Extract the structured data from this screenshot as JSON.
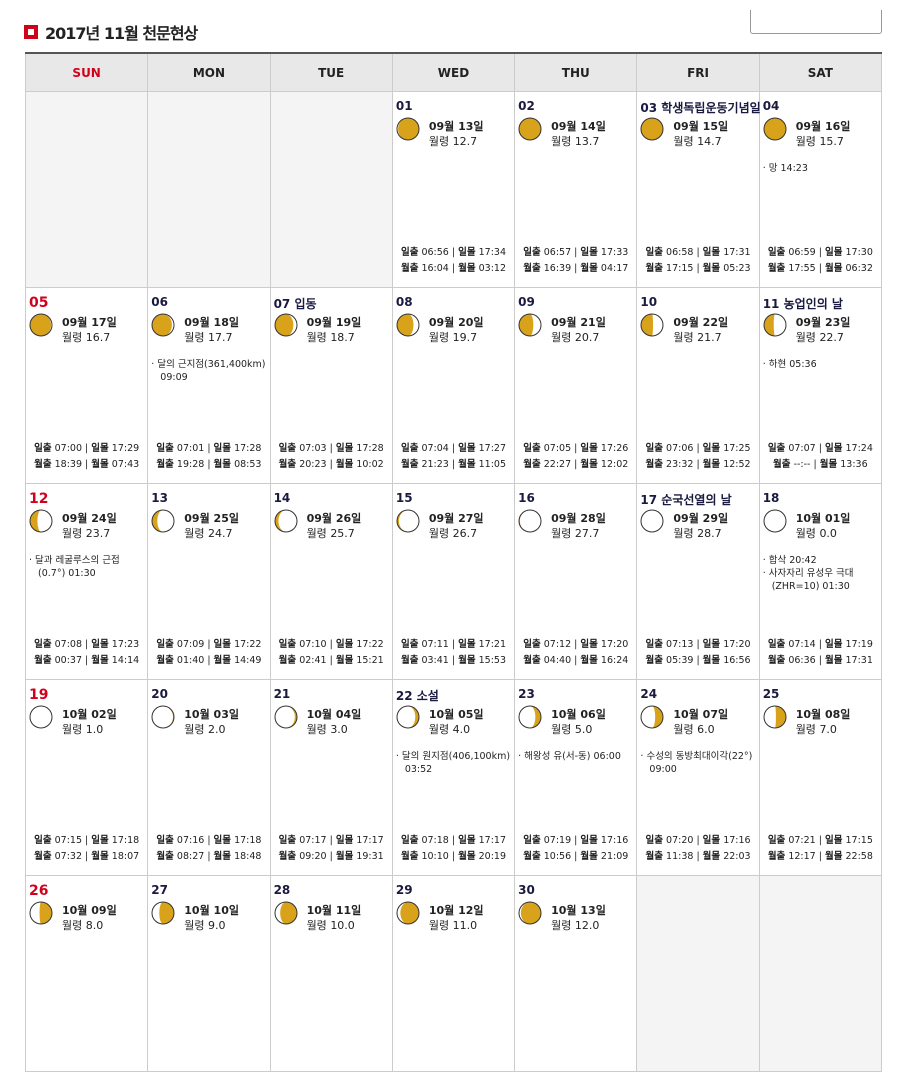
{
  "title": "2017년 11월 천문현상",
  "colors": {
    "accent": "#d0021b",
    "moon_lit": "#d9a21b"
  },
  "weekdays": [
    "SUN",
    "MON",
    "TUE",
    "WED",
    "THU",
    "FRI",
    "SAT"
  ],
  "labels": {
    "sunrise": "일출",
    "sunset": "일몰",
    "moonrise": "월출",
    "moonset": "월몰",
    "age": "월령"
  },
  "weeks": [
    {
      "days": [
        null,
        null,
        null,
        {
          "day": "01",
          "holiday": "",
          "lunar": "09월 13일",
          "age": "12.7",
          "events": [],
          "sr": "06:56",
          "ss": "17:34",
          "mr": "16:04",
          "ms": "03:12"
        },
        {
          "day": "02",
          "holiday": "",
          "lunar": "09월 14일",
          "age": "13.7",
          "events": [],
          "sr": "06:57",
          "ss": "17:33",
          "mr": "16:39",
          "ms": "04:17"
        },
        {
          "day": "03",
          "holiday": "학생독립운동기념일",
          "lunar": "09월 15일",
          "age": "14.7",
          "events": [],
          "sr": "06:58",
          "ss": "17:31",
          "mr": "17:15",
          "ms": "05:23"
        },
        {
          "day": "04",
          "holiday": "",
          "lunar": "09월 16일",
          "age": "15.7",
          "events": [
            "망 14:23"
          ],
          "sr": "06:59",
          "ss": "17:30",
          "mr": "17:55",
          "ms": "06:32"
        }
      ]
    },
    {
      "days": [
        {
          "day": "05",
          "holiday": "",
          "lunar": "09월 17일",
          "age": "16.7",
          "events": [],
          "sr": "07:00",
          "ss": "17:29",
          "mr": "18:39",
          "ms": "07:43"
        },
        {
          "day": "06",
          "holiday": "",
          "lunar": "09월 18일",
          "age": "17.7",
          "events": [
            "달의 근지점(361,400km) 09:09"
          ],
          "sr": "07:01",
          "ss": "17:28",
          "mr": "19:28",
          "ms": "08:53"
        },
        {
          "day": "07",
          "holiday": "입동",
          "lunar": "09월 19일",
          "age": "18.7",
          "events": [],
          "sr": "07:03",
          "ss": "17:28",
          "mr": "20:23",
          "ms": "10:02"
        },
        {
          "day": "08",
          "holiday": "",
          "lunar": "09월 20일",
          "age": "19.7",
          "events": [],
          "sr": "07:04",
          "ss": "17:27",
          "mr": "21:23",
          "ms": "11:05"
        },
        {
          "day": "09",
          "holiday": "",
          "lunar": "09월 21일",
          "age": "20.7",
          "events": [],
          "sr": "07:05",
          "ss": "17:26",
          "mr": "22:27",
          "ms": "12:02"
        },
        {
          "day": "10",
          "holiday": "",
          "lunar": "09월 22일",
          "age": "21.7",
          "events": [],
          "sr": "07:06",
          "ss": "17:25",
          "mr": "23:32",
          "ms": "12:52"
        },
        {
          "day": "11",
          "holiday": "농업인의 날",
          "lunar": "09월 23일",
          "age": "22.7",
          "events": [
            "하현 05:36"
          ],
          "sr": "07:07",
          "ss": "17:24",
          "mr": "--:--",
          "ms": "13:36"
        }
      ]
    },
    {
      "days": [
        {
          "day": "12",
          "holiday": "",
          "lunar": "09월 24일",
          "age": "23.7",
          "events": [
            "달과 레굴루스의 근접(0.7°) 01:30"
          ],
          "sr": "07:08",
          "ss": "17:23",
          "mr": "00:37",
          "ms": "14:14"
        },
        {
          "day": "13",
          "holiday": "",
          "lunar": "09월 25일",
          "age": "24.7",
          "events": [],
          "sr": "07:09",
          "ss": "17:22",
          "mr": "01:40",
          "ms": "14:49"
        },
        {
          "day": "14",
          "holiday": "",
          "lunar": "09월 26일",
          "age": "25.7",
          "events": [],
          "sr": "07:10",
          "ss": "17:22",
          "mr": "02:41",
          "ms": "15:21"
        },
        {
          "day": "15",
          "holiday": "",
          "lunar": "09월 27일",
          "age": "26.7",
          "events": [],
          "sr": "07:11",
          "ss": "17:21",
          "mr": "03:41",
          "ms": "15:53"
        },
        {
          "day": "16",
          "holiday": "",
          "lunar": "09월 28일",
          "age": "27.7",
          "events": [],
          "sr": "07:12",
          "ss": "17:20",
          "mr": "04:40",
          "ms": "16:24"
        },
        {
          "day": "17",
          "holiday": "순국선열의 날",
          "lunar": "09월 29일",
          "age": "28.7",
          "events": [],
          "sr": "07:13",
          "ss": "17:20",
          "mr": "05:39",
          "ms": "16:56"
        },
        {
          "day": "18",
          "holiday": "",
          "lunar": "10월 01일",
          "age": "0.0",
          "events": [
            "합삭 20:42",
            "사자자리 유성우 극대 (ZHR=10) 01:30"
          ],
          "sr": "07:14",
          "ss": "17:19",
          "mr": "06:36",
          "ms": "17:31"
        }
      ]
    },
    {
      "days": [
        {
          "day": "19",
          "holiday": "",
          "lunar": "10월 02일",
          "age": "1.0",
          "events": [],
          "sr": "07:15",
          "ss": "17:18",
          "mr": "07:32",
          "ms": "18:07"
        },
        {
          "day": "20",
          "holiday": "",
          "lunar": "10월 03일",
          "age": "2.0",
          "events": [],
          "sr": "07:16",
          "ss": "17:18",
          "mr": "08:27",
          "ms": "18:48"
        },
        {
          "day": "21",
          "holiday": "",
          "lunar": "10월 04일",
          "age": "3.0",
          "events": [],
          "sr": "07:17",
          "ss": "17:17",
          "mr": "09:20",
          "ms": "19:31"
        },
        {
          "day": "22",
          "holiday": "소설",
          "lunar": "10월 05일",
          "age": "4.0",
          "events": [
            "달의 원지점(406,100km) 03:52"
          ],
          "sr": "07:18",
          "ss": "17:17",
          "mr": "10:10",
          "ms": "20:19"
        },
        {
          "day": "23",
          "holiday": "",
          "lunar": "10월 06일",
          "age": "5.0",
          "events": [
            "해왕성 유(서-동) 06:00"
          ],
          "sr": "07:19",
          "ss": "17:16",
          "mr": "10:56",
          "ms": "21:09"
        },
        {
          "day": "24",
          "holiday": "",
          "lunar": "10월 07일",
          "age": "6.0",
          "events": [
            "수성의 동방최대이각(22°) 09:00"
          ],
          "sr": "07:20",
          "ss": "17:16",
          "mr": "11:38",
          "ms": "22:03"
        },
        {
          "day": "25",
          "holiday": "",
          "lunar": "10월 08일",
          "age": "7.0",
          "events": [],
          "sr": "07:21",
          "ss": "17:15",
          "mr": "12:17",
          "ms": "22:58"
        }
      ]
    },
    {
      "days": [
        {
          "day": "26",
          "holiday": "",
          "lunar": "10월 09일",
          "age": "8.0",
          "events": []
        },
        {
          "day": "27",
          "holiday": "",
          "lunar": "10월 10일",
          "age": "9.0",
          "events": []
        },
        {
          "day": "28",
          "holiday": "",
          "lunar": "10월 11일",
          "age": "10.0",
          "events": []
        },
        {
          "day": "29",
          "holiday": "",
          "lunar": "10월 12일",
          "age": "11.0",
          "events": []
        },
        {
          "day": "30",
          "holiday": "",
          "lunar": "10월 13일",
          "age": "12.0",
          "events": []
        },
        null,
        null
      ]
    }
  ]
}
